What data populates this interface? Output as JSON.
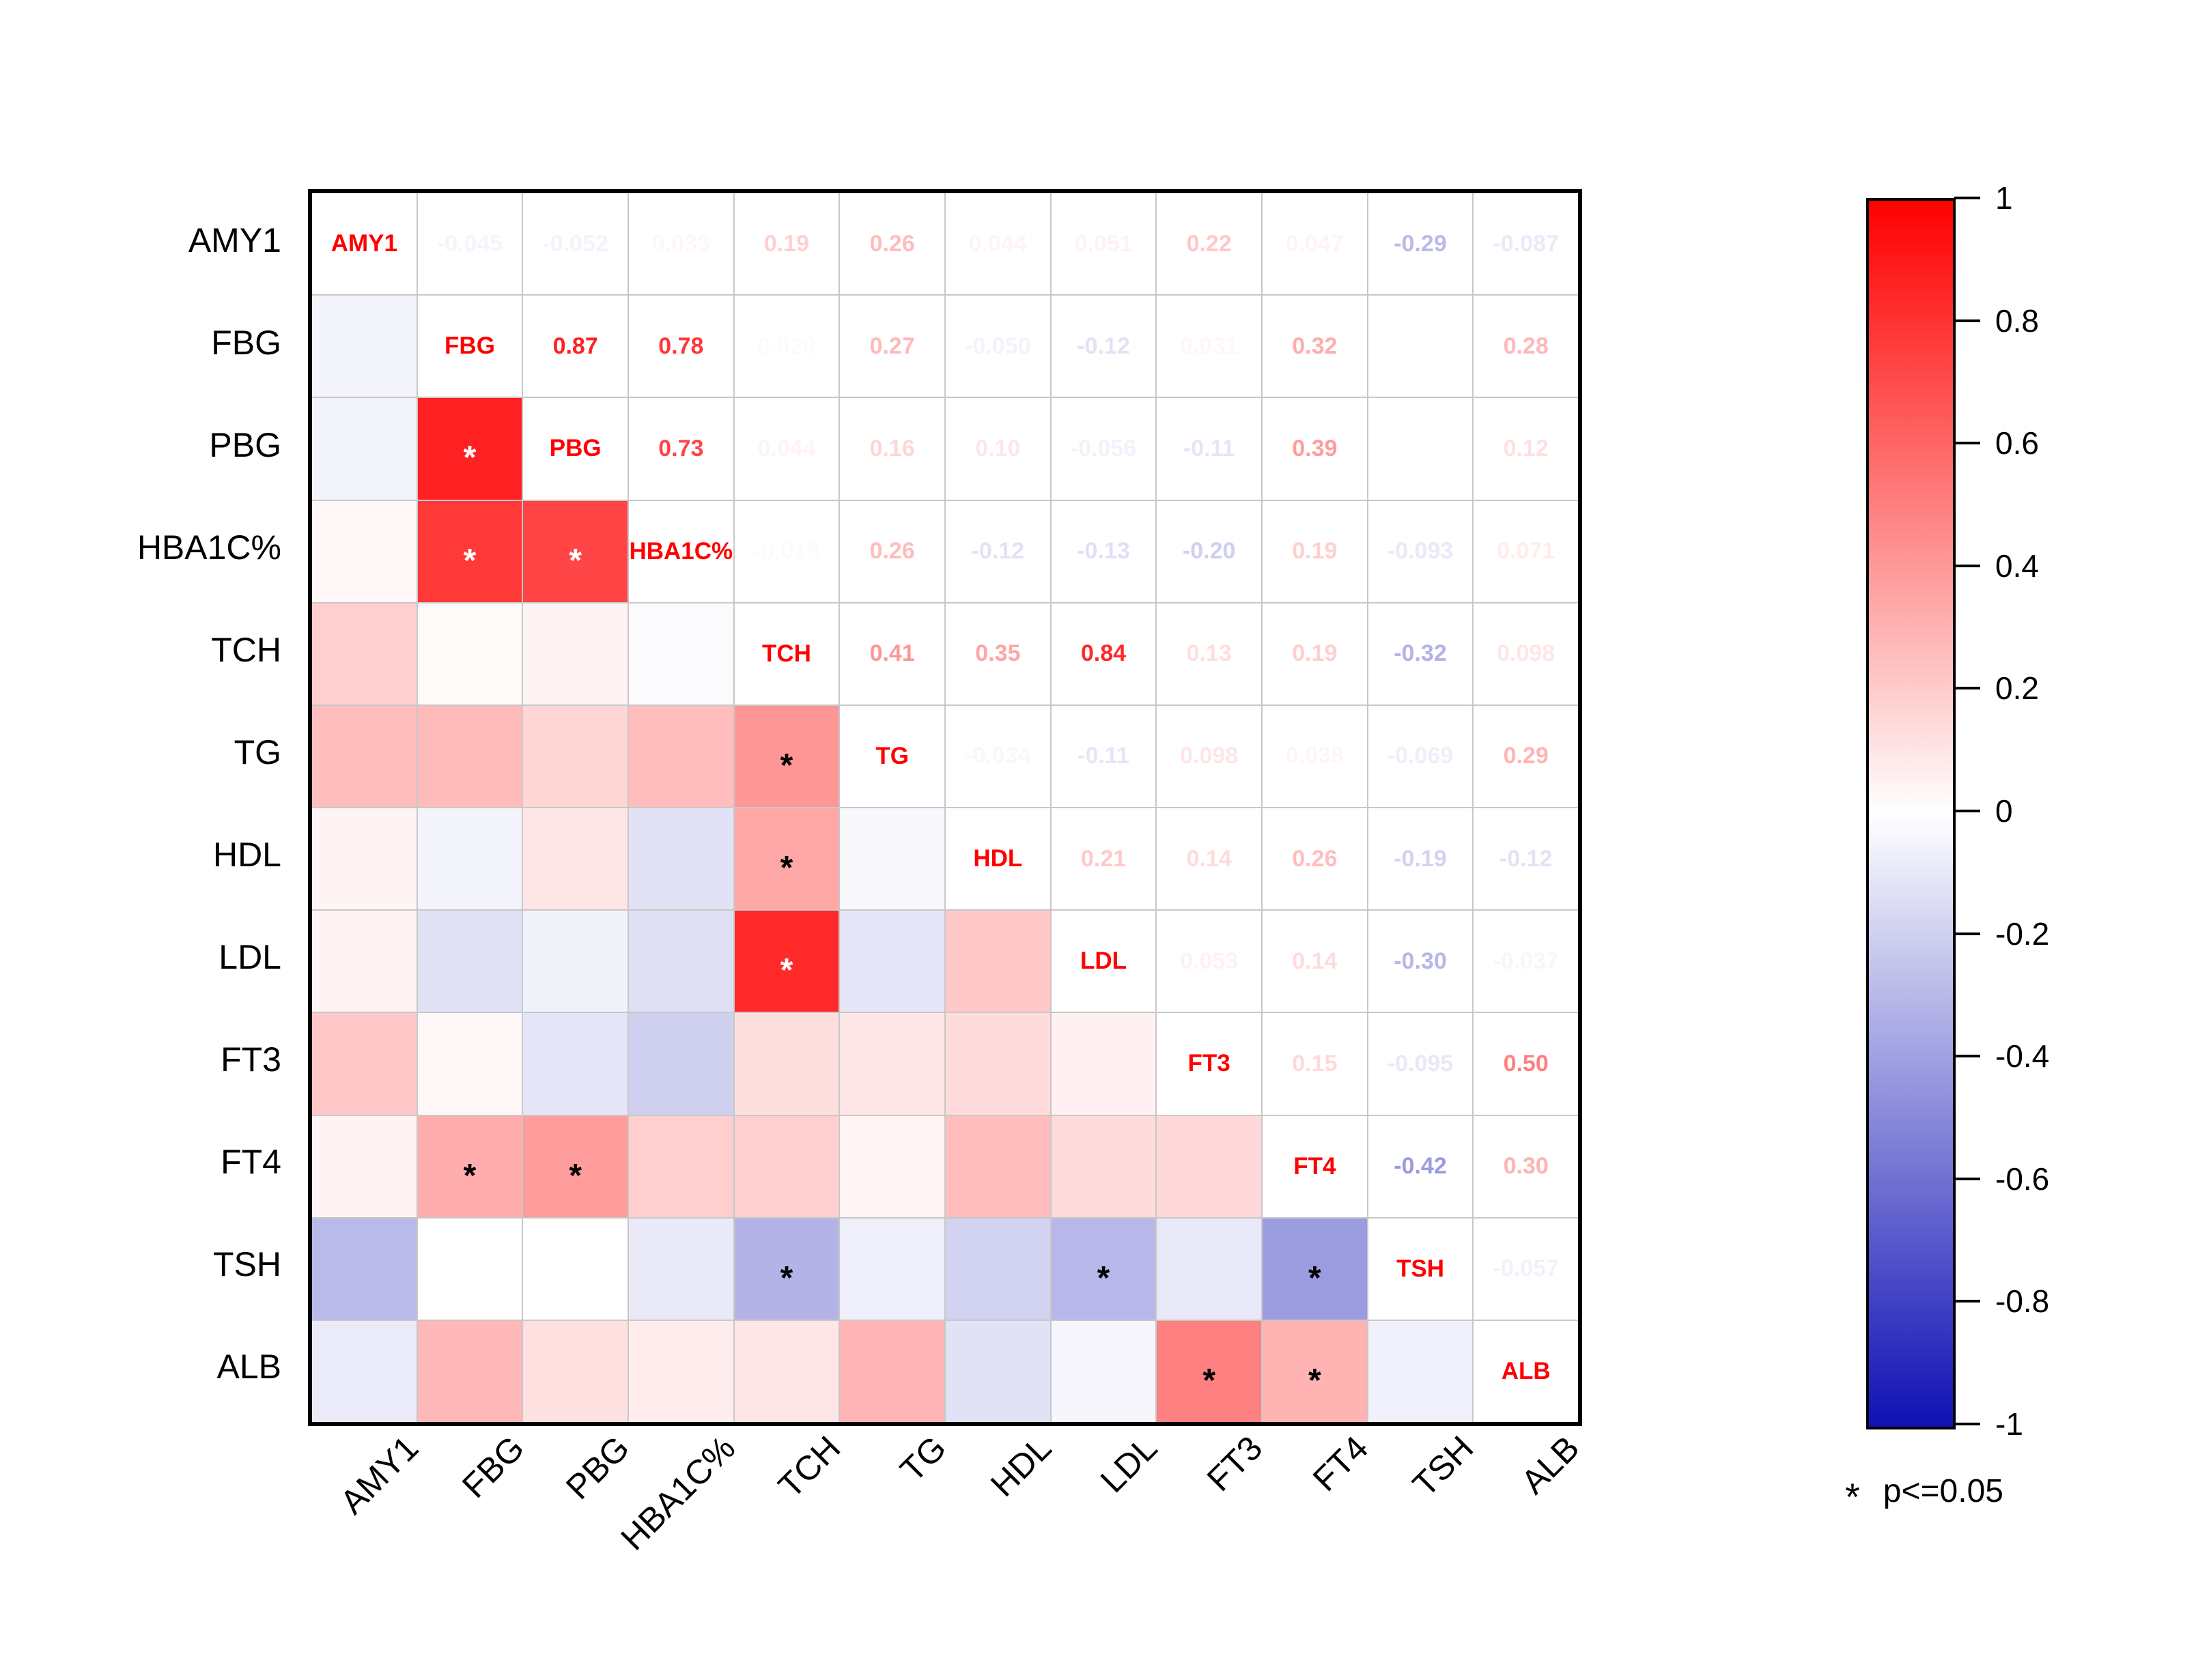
{
  "chart_data": {
    "type": "heatmap",
    "variant": "correlation-matrix",
    "title": "",
    "variables": [
      "AMY1",
      "FBG",
      "PBG",
      "HBA1C%",
      "TCH",
      "TG",
      "HDL",
      "LDL",
      "FT3",
      "FT4",
      "TSH",
      "ALB"
    ],
    "values": [
      [
        1,
        -0.045,
        -0.052,
        0.033,
        0.19,
        0.26,
        0.044,
        0.051,
        0.22,
        0.047,
        -0.29,
        -0.087
      ],
      [
        -0.045,
        1,
        0.87,
        0.78,
        0.02,
        0.27,
        -0.05,
        -0.12,
        0.031,
        0.32,
        0,
        0.28
      ],
      [
        -0.052,
        0.87,
        1,
        0.73,
        0.044,
        0.16,
        0.1,
        -0.056,
        -0.11,
        0.39,
        0,
        0.12
      ],
      [
        0.033,
        0.78,
        0.73,
        1,
        -0.018,
        0.26,
        -0.12,
        -0.13,
        -0.2,
        0.19,
        -0.093,
        0.071
      ],
      [
        0.19,
        0.02,
        0.044,
        -0.018,
        1,
        0.41,
        0.35,
        0.84,
        0.13,
        0.19,
        -0.32,
        0.098
      ],
      [
        0.26,
        0.27,
        0.16,
        0.26,
        0.41,
        1,
        -0.034,
        -0.11,
        0.098,
        0.038,
        -0.069,
        0.29
      ],
      [
        0.044,
        -0.05,
        0.1,
        -0.12,
        0.35,
        -0.034,
        1,
        0.21,
        0.14,
        0.26,
        -0.19,
        -0.12
      ],
      [
        0.051,
        -0.12,
        -0.056,
        -0.13,
        0.84,
        -0.11,
        0.21,
        1,
        0.053,
        0.14,
        -0.3,
        -0.037
      ],
      [
        0.22,
        0.031,
        -0.11,
        -0.2,
        0.13,
        0.098,
        0.14,
        0.053,
        1,
        0.15,
        -0.095,
        0.5
      ],
      [
        0.047,
        0.32,
        0.39,
        0.19,
        0.19,
        0.038,
        0.26,
        0.14,
        0.15,
        1,
        -0.42,
        0.3
      ],
      [
        -0.29,
        0,
        0,
        -0.093,
        -0.32,
        -0.069,
        -0.19,
        -0.3,
        -0.095,
        -0.42,
        1,
        -0.057
      ],
      [
        -0.087,
        0.28,
        0.12,
        0.071,
        0.098,
        0.29,
        -0.12,
        -0.037,
        0.5,
        0.3,
        -0.057,
        1
      ]
    ],
    "upper_labels": [
      [
        "",
        "-0.045",
        "-0.052",
        "0.033",
        "0.19",
        "0.26",
        "0.044",
        "0.051",
        "0.22",
        "0.047",
        "-0.29",
        "-0.087"
      ],
      [
        "",
        "",
        "0.87",
        "0.78",
        "0.020",
        "0.27",
        "-0.050",
        "-0.12",
        "0.031",
        "0.32",
        "",
        "0.28"
      ],
      [
        "",
        "",
        "",
        "0.73",
        "0.044",
        "0.16",
        "0.10",
        "-0.056",
        "-0.11",
        "0.39",
        "",
        "0.12"
      ],
      [
        "",
        "",
        "",
        "",
        "-0.018",
        "0.26",
        "-0.12",
        "-0.13",
        "-0.20",
        "0.19",
        "-0.093",
        "0.071"
      ],
      [
        "",
        "",
        "",
        "",
        "",
        "0.41",
        "0.35",
        "0.84",
        "0.13",
        "0.19",
        "-0.32",
        "0.098"
      ],
      [
        "",
        "",
        "",
        "",
        "",
        "",
        "-0.034",
        "-0.11",
        "0.098",
        "0.038",
        "-0.069",
        "0.29"
      ],
      [
        "",
        "",
        "",
        "",
        "",
        "",
        "",
        "0.21",
        "0.14",
        "0.26",
        "-0.19",
        "-0.12"
      ],
      [
        "",
        "",
        "",
        "",
        "",
        "",
        "",
        "",
        "0.053",
        "0.14",
        "-0.30",
        "-0.037"
      ],
      [
        "",
        "",
        "",
        "",
        "",
        "",
        "",
        "",
        "",
        "0.15",
        "-0.095",
        "0.50"
      ],
      [
        "",
        "",
        "",
        "",
        "",
        "",
        "",
        "",
        "",
        "",
        "-0.42",
        "0.30"
      ],
      [
        "",
        "",
        "",
        "",
        "",
        "",
        "",
        "",
        "",
        "",
        "",
        "-0.057"
      ],
      [
        "",
        "",
        "",
        "",
        "",
        "",
        "",
        "",
        "",
        "",
        "",
        ""
      ]
    ],
    "significant_pairs": [
      [
        2,
        1
      ],
      [
        3,
        1
      ],
      [
        3,
        2
      ],
      [
        5,
        4
      ],
      [
        6,
        4
      ],
      [
        7,
        4
      ],
      [
        9,
        1
      ],
      [
        9,
        2
      ],
      [
        10,
        4
      ],
      [
        10,
        7
      ],
      [
        10,
        9
      ],
      [
        11,
        8
      ],
      [
        11,
        9
      ]
    ],
    "diagonal_label_color": "#ff0000",
    "star_color_dark_bg": "#ffffff",
    "star_color_light_bg": "#000000",
    "colorbar": {
      "tick_labels": [
        "1",
        "0.8",
        "0.6",
        "0.4",
        "0.2",
        "0",
        "-0.2",
        "-0.4",
        "-0.6",
        "-0.8",
        "-1"
      ],
      "range_max": 1,
      "range_min": -1,
      "max_color": "#ff0000",
      "mid_color": "#ffffff",
      "min_color": "#1010b5"
    },
    "legend_note_star": "*",
    "legend_note_text": "p<=0.05"
  }
}
